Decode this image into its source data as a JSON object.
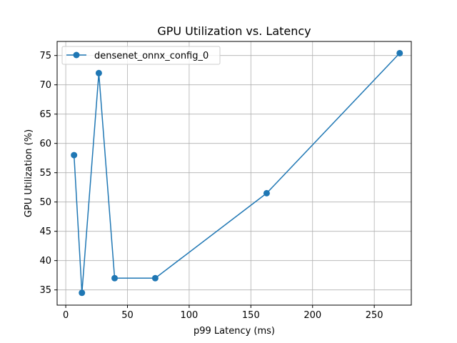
{
  "chart_data": {
    "type": "line",
    "title": "GPU Utilization vs. Latency",
    "xlabel": "p99 Latency (ms)",
    "ylabel": "GPU Utilization (%)",
    "xlim": [
      -7,
      280
    ],
    "ylim": [
      32.4,
      77.4
    ],
    "xticks": [
      0,
      50,
      100,
      150,
      200,
      250
    ],
    "yticks": [
      35,
      40,
      45,
      50,
      55,
      60,
      65,
      70,
      75
    ],
    "grid": true,
    "legend_position": "top-left",
    "series": [
      {
        "name": "densenet_onnx_config_0",
        "color": "#1f77b4",
        "marker": "circle",
        "points": [
          {
            "x": 6.7,
            "y": 58.0
          },
          {
            "x": 13.1,
            "y": 34.5
          },
          {
            "x": 26.8,
            "y": 72.0
          },
          {
            "x": 39.6,
            "y": 37.0
          },
          {
            "x": 72.5,
            "y": 37.0
          },
          {
            "x": 162.8,
            "y": 51.5
          },
          {
            "x": 270.6,
            "y": 75.4
          }
        ]
      }
    ]
  }
}
